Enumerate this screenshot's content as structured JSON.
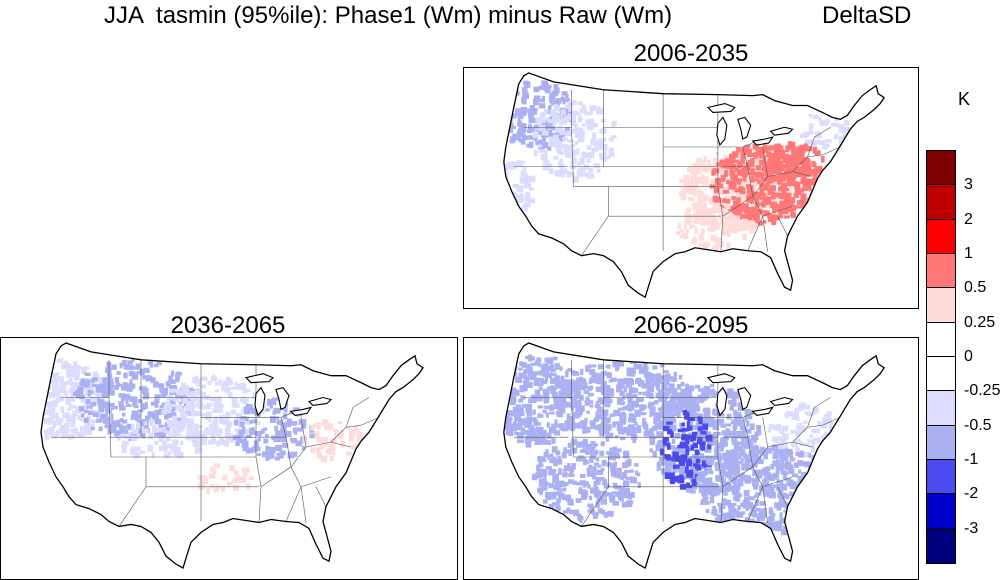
{
  "header": {
    "title": "JJA  tasmin (95%ile): Phase1 (Wm) minus Raw (Wm)",
    "right_label": "DeltaSD"
  },
  "panels": [
    {
      "title": "2006-2035",
      "pattern": "east-warm-west-cool"
    },
    {
      "title": "2036-2065",
      "pattern": "mostly-cool"
    },
    {
      "title": "2066-2095",
      "pattern": "widespread-cool"
    }
  ],
  "colorbar": {
    "unit": "K",
    "labels": [
      "3",
      "2",
      "1",
      "0.5",
      "0.25",
      "0",
      "-0.25",
      "-0.5",
      "-1",
      "-2",
      "-3"
    ],
    "colors": [
      "#7f0000",
      "#c00000",
      "#ff0000",
      "#ff7777",
      "#ffdcdc",
      "#ffffff",
      "#ffffff",
      "#dcdcff",
      "#aab0f2",
      "#4b4bf0",
      "#0000cc",
      "#00007f"
    ]
  }
}
